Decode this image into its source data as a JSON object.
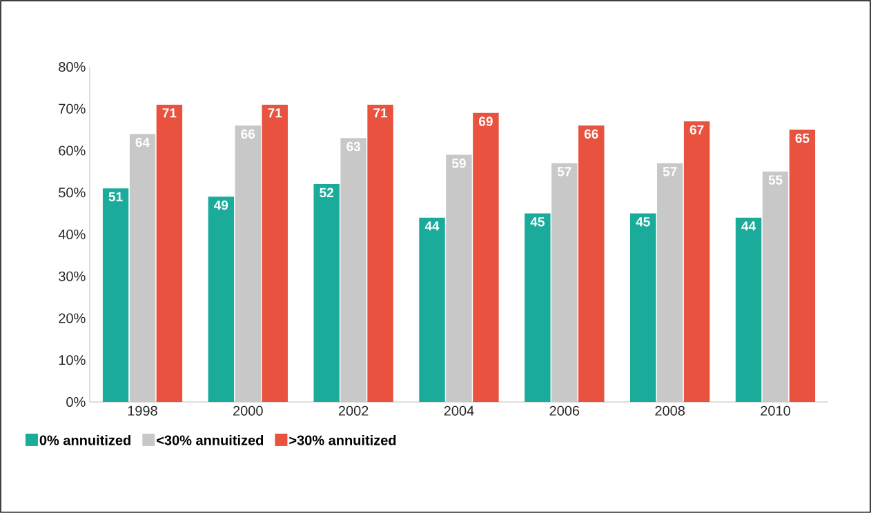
{
  "chart_data": {
    "type": "bar",
    "categories": [
      "1998",
      "2000",
      "2002",
      "2004",
      "2006",
      "2008",
      "2010"
    ],
    "series": [
      {
        "name": "0% annuitized",
        "color": "#1aab9b",
        "values": [
          51,
          49,
          52,
          44,
          45,
          45,
          44
        ]
      },
      {
        "name": "<30% annuitized",
        "color": "#c8c8c8",
        "values": [
          64,
          66,
          63,
          59,
          57,
          57,
          55
        ]
      },
      {
        "name": ">30% annuitized",
        "color": "#e8523f",
        "values": [
          71,
          71,
          71,
          69,
          66,
          67,
          65
        ]
      }
    ],
    "ylim": [
      0,
      80
    ],
    "yticks": [
      {
        "value": 0,
        "label": "0%"
      },
      {
        "value": 10,
        "label": "10%"
      },
      {
        "value": 20,
        "label": "20%"
      },
      {
        "value": 30,
        "label": "30%"
      },
      {
        "value": 40,
        "label": "40%"
      },
      {
        "value": 50,
        "label": "50%"
      },
      {
        "value": 60,
        "label": "60%"
      },
      {
        "value": 70,
        "label": "70%"
      },
      {
        "value": 80,
        "label": "80%"
      }
    ],
    "data_labels": true,
    "grid": false,
    "legend": "bottom left"
  }
}
